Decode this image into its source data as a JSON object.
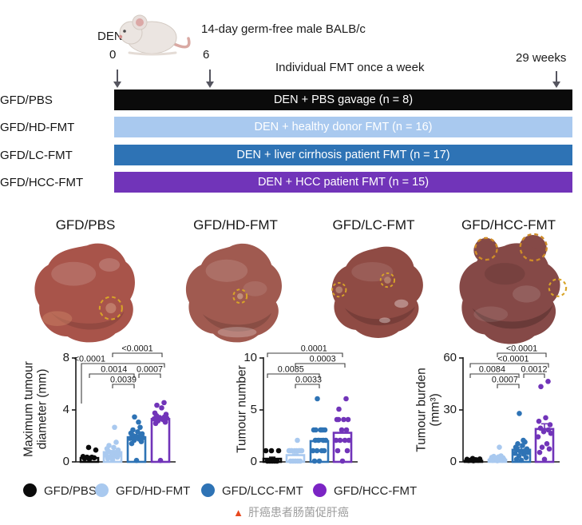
{
  "header": {
    "den_label": "DEN",
    "tick_start": "0",
    "tick_mid": "6",
    "tick_end": "29 weeks",
    "mouse_caption": "14-day germ-free male BALB/c",
    "fmt_note": "Individual FMT once a week"
  },
  "timeline_groups": [
    {
      "label": "GFD/PBS",
      "bar_text": "DEN + PBS gavage (n = 8)",
      "color": "#0b0b0b",
      "text_color": "#ffffff"
    },
    {
      "label": "GFD/HD-FMT",
      "bar_text": "DEN + healthy donor FMT (n = 16)",
      "color": "#a9c9ef",
      "text_color": "#ffffff"
    },
    {
      "label": "GFD/LC-FMT",
      "bar_text": "DEN + liver cirrhosis patient FMT (n = 17)",
      "color": "#2e73b5",
      "text_color": "#ffffff"
    },
    {
      "label": "GFD/HCC-FMT",
      "bar_text": "DEN + HCC patient FMT (n = 15)",
      "color": "#7134b9",
      "text_color": "#ffffff"
    }
  ],
  "liver_panels": [
    {
      "label": "GFD/PBS",
      "color": "#a8544a"
    },
    {
      "label": "GFD/HD-FMT",
      "color": "#a05a50"
    },
    {
      "label": "GFD/LC-FMT",
      "color": "#8f4b44"
    },
    {
      "label": "GFD/HCC-FMT",
      "color": "#854947"
    }
  ],
  "chart_data": [
    {
      "type": "bar",
      "overlay": "scatter",
      "ylabel_lines": [
        "Maximum tumour",
        "diameter (mm)"
      ],
      "ylim": [
        0,
        8
      ],
      "yticks": [
        0,
        4,
        8
      ],
      "grid": false,
      "categories": [
        "GFD/PBS",
        "GFD/HD-FMT",
        "GFD/LC-FMT",
        "GFD/HCC-FMT"
      ],
      "series": [
        {
          "name": "GFD/PBS",
          "color": "#0b0b0b",
          "mean": 0.3,
          "sem": 0.12,
          "points": [
            0.15,
            0.2,
            0.25,
            0.3,
            0.3,
            0.35,
            0.85,
            1.05
          ]
        },
        {
          "name": "GFD/HD-FMT",
          "color": "#a9c9ef",
          "mean": 0.75,
          "sem": 0.12,
          "points": [
            0.1,
            0.2,
            0.3,
            0.35,
            0.4,
            0.45,
            0.5,
            0.55,
            0.65,
            0.75,
            0.85,
            0.95,
            1.05,
            1.2,
            1.45,
            2.6
          ]
        },
        {
          "name": "GFD/LC-FMT",
          "color": "#2e73b5",
          "mean": 1.9,
          "sem": 0.15,
          "points": [
            0.05,
            1.35,
            1.5,
            1.6,
            1.7,
            1.75,
            1.8,
            1.9,
            1.95,
            2.0,
            2.1,
            2.15,
            2.25,
            2.4,
            2.6,
            3.0,
            3.4
          ]
        },
        {
          "name": "GFD/HCC-FMT",
          "color": "#7134b9",
          "mean": 3.3,
          "sem": 0.15,
          "points": [
            0.05,
            2.9,
            3.0,
            3.1,
            3.2,
            3.25,
            3.3,
            3.35,
            3.4,
            3.5,
            3.6,
            3.7,
            4.1,
            4.3,
            4.5
          ]
        }
      ],
      "comparisons": [
        {
          "a": 2,
          "b": 4,
          "p": "<0.0001"
        },
        {
          "a": 1,
          "b": 4,
          "p": "<0.0001"
        },
        {
          "a": 1,
          "b": 3,
          "p": "0.0014"
        },
        {
          "a": 3,
          "b": 4,
          "p": "0.0007"
        },
        {
          "a": 2,
          "b": 3,
          "p": "0.0039"
        }
      ]
    },
    {
      "type": "bar",
      "overlay": "scatter",
      "ylabel_lines": [
        "Tumour number"
      ],
      "ylim": [
        0,
        10
      ],
      "yticks": [
        0,
        5,
        10
      ],
      "grid": false,
      "categories": [
        "GFD/PBS",
        "GFD/HD-FMT",
        "GFD/LC-FMT",
        "GFD/HCC-FMT"
      ],
      "series": [
        {
          "name": "GFD/PBS",
          "color": "#0b0b0b",
          "mean": 0.3,
          "sem": 0.15,
          "points": [
            0,
            0,
            0,
            0,
            0,
            1,
            1,
            1
          ]
        },
        {
          "name": "GFD/HD-FMT",
          "color": "#a9c9ef",
          "mean": 0.65,
          "sem": 0.12,
          "points": [
            0,
            0,
            0,
            0,
            0,
            1,
            1,
            1,
            1,
            1,
            1,
            1,
            1,
            1,
            1,
            2
          ]
        },
        {
          "name": "GFD/LC-FMT",
          "color": "#2e73b5",
          "mean": 2.0,
          "sem": 0.25,
          "points": [
            0,
            0,
            1,
            1,
            1,
            1,
            2,
            2,
            2,
            2,
            3,
            3,
            3,
            3,
            3,
            3,
            6
          ]
        },
        {
          "name": "GFD/HCC-FMT",
          "color": "#7134b9",
          "mean": 2.8,
          "sem": 0.3,
          "points": [
            0,
            1,
            1,
            2,
            2,
            2,
            2,
            3,
            3,
            4,
            4,
            4,
            4,
            5,
            6
          ]
        }
      ],
      "comparisons": [
        {
          "a": 1,
          "b": 4,
          "p": "0.0001"
        },
        {
          "a": 2,
          "b": 4,
          "p": "0.0003"
        },
        {
          "a": 1,
          "b": 3,
          "p": "0.0085"
        },
        {
          "a": 2,
          "b": 3,
          "p": "0.0033"
        }
      ]
    },
    {
      "type": "bar",
      "overlay": "scatter",
      "ylabel_lines": [
        "Tumour burden",
        "(mm³)"
      ],
      "ylim": [
        0,
        60
      ],
      "yticks": [
        0,
        30,
        60
      ],
      "grid": false,
      "categories": [
        "GFD/PBS",
        "GFD/HD-FMT",
        "GFD/LC-FMT",
        "GFD/HCC-FMT"
      ],
      "series": [
        {
          "name": "GFD/PBS",
          "color": "#0b0b0b",
          "mean": 0.6,
          "sem": 0.3,
          "points": [
            0.2,
            0.3,
            0.5,
            0.6,
            0.8,
            1.0,
            1.2,
            1.5
          ]
        },
        {
          "name": "GFD/HD-FMT",
          "color": "#a9c9ef",
          "mean": 1.2,
          "sem": 0.4,
          "points": [
            0.2,
            0.4,
            0.5,
            0.7,
            0.8,
            1.0,
            1.1,
            1.3,
            1.5,
            1.7,
            1.9,
            2.1,
            2.4,
            2.7,
            3.0,
            8.0
          ]
        },
        {
          "name": "GFD/LC-FMT",
          "color": "#2e73b5",
          "mean": 7.0,
          "sem": 1.5,
          "points": [
            0.5,
            1,
            2,
            3,
            4,
            4.5,
            5,
            5.5,
            6,
            6.5,
            7,
            8,
            9,
            10,
            11,
            12,
            27.5
          ]
        },
        {
          "name": "GFD/HCC-FMT",
          "color": "#7134b9",
          "mean": 19.0,
          "sem": 3.0,
          "points": [
            1,
            5,
            7,
            8,
            10,
            14,
            16,
            17,
            18,
            19,
            21,
            23,
            25,
            43,
            46
          ]
        }
      ],
      "comparisons": [
        {
          "a": 2,
          "b": 4,
          "p": "<0.0001"
        },
        {
          "a": 1,
          "b": 4,
          "p": "<0.0001"
        },
        {
          "a": 1,
          "b": 3,
          "p": "0.0084"
        },
        {
          "a": 3,
          "b": 4,
          "p": "0.0012"
        },
        {
          "a": 2,
          "b": 3,
          "p": "0.0007"
        }
      ]
    }
  ],
  "legend": {
    "items": [
      {
        "label": "GFD/PBS",
        "color": "#0b0b0b"
      },
      {
        "label": "GFD/HD-FMT",
        "color": "#a9c9ef"
      },
      {
        "label": "GFD/LCC-FMT",
        "color": "#2e73b5"
      },
      {
        "label": "GFD/HCC-FMT",
        "color": "#7b24c4"
      }
    ]
  },
  "caption": {
    "marker": "▲",
    "text": "肝癌患者肠菌促肝癌",
    "marker_color": "#e8491f"
  }
}
